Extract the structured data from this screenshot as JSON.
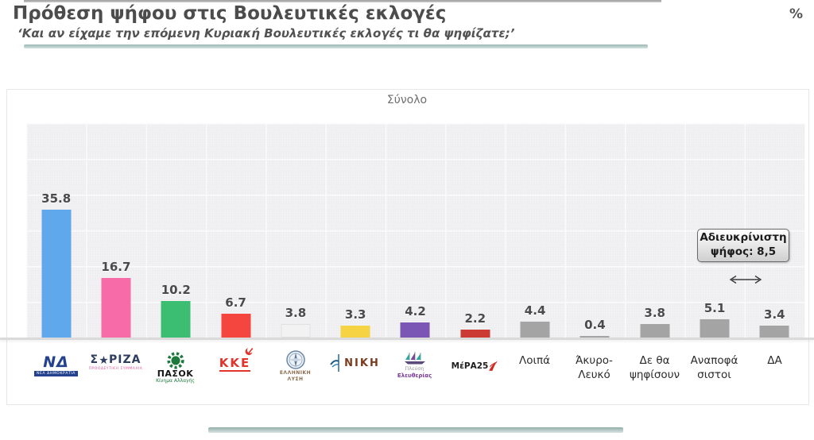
{
  "header": {
    "title": "Πρόθεση ψήφου στις Βουλευτικές εκλογές",
    "subtitle": "‘Και αν είχαμε την επόμενη Κυριακή Βουλευτικές εκλογές τι θα ψηφίζατε;’",
    "unit": "%"
  },
  "panel": {
    "title": "Σύνολο"
  },
  "annotation": {
    "line1": "Αδιευκρίνιστη",
    "line2": "ψήφος: 8,5"
  },
  "chart_data": {
    "type": "bar",
    "title": "Σύνολο",
    "xlabel": "",
    "ylabel": "%",
    "ylim": [
      0,
      60
    ],
    "grid": true,
    "legend": false,
    "categories": [
      "ΝΔ (Νέα Δημοκρατία)",
      "ΣΥΡΙΖΑ",
      "ΠΑΣΟΚ – Κίνημα Αλλαγής",
      "ΚΚΕ",
      "Ελληνική Λύση",
      "ΝΙΚΗ",
      "Πλεύση Ελευθερίας",
      "ΜέΡΑ25",
      "Λοιπά",
      "Άκυρο-Λευκό",
      "Δε θα ψηφίσουν",
      "Αναποφάσιστοι",
      "ΔΑ"
    ],
    "values": [
      35.8,
      16.7,
      10.2,
      6.7,
      3.8,
      3.3,
      4.2,
      2.2,
      4.4,
      0.4,
      3.8,
      5.1,
      3.4
    ],
    "bar_colors": [
      "#5FA8EC",
      "#F76BA8",
      "#3CBE72",
      "#F4463E",
      "#F3F2F3",
      "#F6D343",
      "#7B57B5",
      "#CB3B33",
      "#A5A4A5",
      "#A5A4A5",
      "#A5A4A5",
      "#A5A4A5",
      "#A5A4A5"
    ],
    "annotation": "Αδιευκρίνιστη ψήφος: 8,5"
  },
  "parties": [
    {
      "label": "ΝΔ",
      "sub": "ΝΕΑ ΔΗΜΟΚΡΑΤΙΑ"
    },
    {
      "part1": "Σ",
      "part2": "ΡΙΖΑ",
      "sub": "ΠΡΟΟΔΕΥΤΙΚΗ ΣΥΜΜΑΧΙΑ"
    },
    {
      "label": "ΠΑΣΟΚ",
      "sub": "Κίνημα Αλλαγής"
    },
    {
      "label": "ΚΚΕ"
    },
    {
      "line1": "ΕΛΛΗΝΙΚΗ",
      "line2": "ΛΥΣΗ"
    },
    {
      "label": "ΝΙΚΗ"
    },
    {
      "line1": "Πλεύση",
      "line2": "Ελευθερίας"
    },
    {
      "label": "ΜέΡΑ25"
    },
    {
      "label": "Λοιπά"
    },
    {
      "line1": "Άκυρο-",
      "line2": "Λευκό"
    },
    {
      "line1": "Δε θα",
      "line2": "ψηφίσουν"
    },
    {
      "line1": "Αναποφά",
      "line2": "σιστοι"
    },
    {
      "label": "ΔΑ"
    }
  ]
}
